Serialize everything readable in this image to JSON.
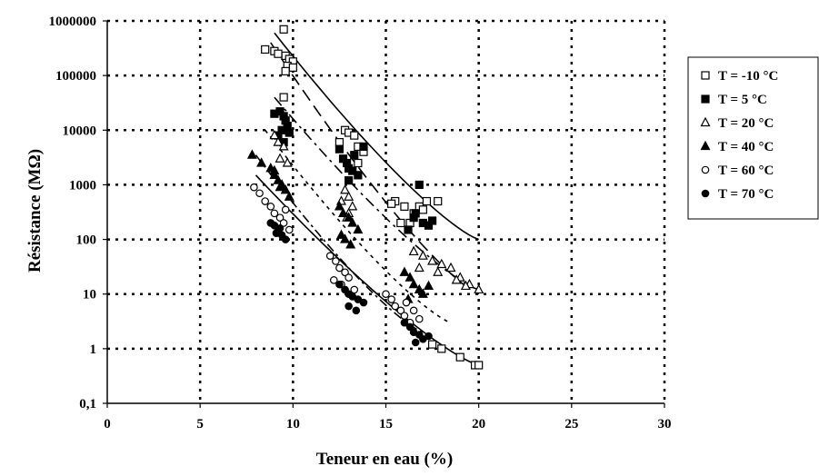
{
  "chart_data": {
    "type": "scatter",
    "title": "",
    "xlabel": "Teneur en eau (%)",
    "ylabel": "Résistance (MΩ)",
    "xlim": [
      0,
      30
    ],
    "ylim": [
      0.1,
      1000000
    ],
    "y_scale": "log",
    "x_ticks": [
      0,
      5,
      10,
      15,
      20,
      25,
      30
    ],
    "x_tick_labels": [
      "0",
      "5",
      "10",
      "15",
      "20",
      "25",
      "30"
    ],
    "y_ticks": [
      0.1,
      1,
      10,
      100,
      1000,
      10000,
      100000,
      1000000
    ],
    "y_tick_labels": [
      "0,1",
      "1",
      "10",
      "100",
      "1000",
      "10000",
      "100000",
      "1000000"
    ],
    "grid": "dotted",
    "legend_position": "right",
    "series": [
      {
        "name": "T = -10 °C",
        "marker": "square-open",
        "points": [
          [
            9.5,
            700000
          ],
          [
            8.5,
            300000
          ],
          [
            9.0,
            280000
          ],
          [
            9.2,
            250000
          ],
          [
            9.6,
            230000
          ],
          [
            9.8,
            200000
          ],
          [
            10.0,
            180000
          ],
          [
            9.7,
            150000
          ],
          [
            10.0,
            140000
          ],
          [
            9.6,
            120000
          ],
          [
            9.5,
            40000
          ],
          [
            12.8,
            10000
          ],
          [
            13.0,
            9000
          ],
          [
            13.3,
            8000
          ],
          [
            12.5,
            6000
          ],
          [
            13.5,
            5000
          ],
          [
            13.8,
            4000
          ],
          [
            13.5,
            2500
          ],
          [
            15.5,
            500
          ],
          [
            15.3,
            450
          ],
          [
            16.0,
            400
          ],
          [
            16.8,
            400
          ],
          [
            17.2,
            500
          ],
          [
            17.8,
            500
          ],
          [
            17.0,
            350
          ],
          [
            16.5,
            300
          ],
          [
            15.8,
            200
          ],
          [
            16.3,
            200
          ],
          [
            17.5,
            1.2
          ],
          [
            18.0,
            1.0
          ],
          [
            19.0,
            0.7
          ],
          [
            19.8,
            0.5
          ],
          [
            20.0,
            0.5
          ]
        ]
      },
      {
        "name": "T = 5 °C",
        "marker": "square-filled",
        "points": [
          [
            9.0,
            20000
          ],
          [
            9.3,
            22000
          ],
          [
            9.5,
            18000
          ],
          [
            9.6,
            15000
          ],
          [
            9.7,
            12000
          ],
          [
            9.4,
            10000
          ],
          [
            9.8,
            9000
          ],
          [
            9.2,
            8000
          ],
          [
            9.5,
            6000
          ],
          [
            12.5,
            4500
          ],
          [
            12.7,
            3000
          ],
          [
            12.9,
            2500
          ],
          [
            13.0,
            2000
          ],
          [
            13.2,
            1800
          ],
          [
            13.5,
            1500
          ],
          [
            13.0,
            1200
          ],
          [
            13.8,
            5000
          ],
          [
            13.3,
            3500
          ],
          [
            16.8,
            1000
          ],
          [
            16.5,
            250
          ],
          [
            17.0,
            200
          ],
          [
            17.3,
            180
          ],
          [
            16.2,
            150
          ],
          [
            16.6,
            300
          ],
          [
            17.5,
            220
          ]
        ]
      },
      {
        "name": "T = 20 °C",
        "marker": "triangle-open",
        "points": [
          [
            9.0,
            8000
          ],
          [
            9.2,
            6000
          ],
          [
            9.5,
            5000
          ],
          [
            9.3,
            3000
          ],
          [
            9.7,
            2500
          ],
          [
            12.8,
            800
          ],
          [
            13.0,
            600
          ],
          [
            12.6,
            500
          ],
          [
            13.2,
            400
          ],
          [
            13.0,
            300
          ],
          [
            12.9,
            250
          ],
          [
            16.5,
            60
          ],
          [
            17.0,
            50
          ],
          [
            17.5,
            40
          ],
          [
            18.0,
            35
          ],
          [
            18.5,
            30
          ],
          [
            19.0,
            20
          ],
          [
            19.5,
            15
          ],
          [
            20.0,
            12
          ],
          [
            16.8,
            30
          ],
          [
            17.8,
            25
          ],
          [
            18.8,
            18
          ],
          [
            19.3,
            14
          ]
        ]
      },
      {
        "name": "T = 40 °C",
        "marker": "triangle-filled",
        "points": [
          [
            7.8,
            3500
          ],
          [
            8.3,
            2500
          ],
          [
            8.8,
            2000
          ],
          [
            9.0,
            1500
          ],
          [
            9.2,
            1200
          ],
          [
            9.4,
            1000
          ],
          [
            9.6,
            800
          ],
          [
            9.8,
            600
          ],
          [
            9.0,
            1800
          ],
          [
            9.3,
            900
          ],
          [
            12.5,
            400
          ],
          [
            12.7,
            300
          ],
          [
            13.0,
            250
          ],
          [
            13.2,
            200
          ],
          [
            13.5,
            150
          ],
          [
            12.8,
            100
          ],
          [
            13.1,
            80
          ],
          [
            12.6,
            120
          ],
          [
            16.0,
            25
          ],
          [
            16.3,
            20
          ],
          [
            16.5,
            15
          ],
          [
            16.8,
            12
          ],
          [
            17.0,
            10
          ],
          [
            16.2,
            8
          ],
          [
            17.3,
            14
          ]
        ]
      },
      {
        "name": "T = 60 °C",
        "marker": "circle-open",
        "points": [
          [
            7.9,
            900
          ],
          [
            8.2,
            700
          ],
          [
            8.5,
            500
          ],
          [
            8.8,
            400
          ],
          [
            9.0,
            300
          ],
          [
            9.3,
            250
          ],
          [
            9.5,
            200
          ],
          [
            9.8,
            150
          ],
          [
            9.6,
            350
          ],
          [
            12.0,
            50
          ],
          [
            12.3,
            40
          ],
          [
            12.5,
            30
          ],
          [
            12.8,
            25
          ],
          [
            13.0,
            20
          ],
          [
            12.6,
            15
          ],
          [
            13.3,
            12
          ],
          [
            12.2,
            18
          ],
          [
            15.0,
            10
          ],
          [
            15.3,
            8
          ],
          [
            15.5,
            6
          ],
          [
            15.8,
            5
          ],
          [
            16.0,
            4
          ],
          [
            16.3,
            3
          ],
          [
            16.5,
            5
          ],
          [
            16.8,
            3.5
          ],
          [
            16.1,
            7
          ]
        ]
      },
      {
        "name": "T = 70 °C",
        "marker": "circle-filled",
        "points": [
          [
            8.8,
            200
          ],
          [
            9.0,
            180
          ],
          [
            9.2,
            150
          ],
          [
            9.4,
            120
          ],
          [
            9.6,
            100
          ],
          [
            9.3,
            160
          ],
          [
            9.1,
            130
          ],
          [
            12.5,
            15
          ],
          [
            12.8,
            12
          ],
          [
            13.0,
            10
          ],
          [
            13.2,
            9
          ],
          [
            13.5,
            8
          ],
          [
            13.8,
            7
          ],
          [
            13.0,
            6
          ],
          [
            13.4,
            5
          ],
          [
            16.0,
            3
          ],
          [
            16.3,
            2.5
          ],
          [
            16.5,
            2
          ],
          [
            16.8,
            1.8
          ],
          [
            17.0,
            1.5
          ],
          [
            17.3,
            1.7
          ],
          [
            16.6,
            1.3
          ]
        ]
      }
    ],
    "fit_lines": [
      {
        "series": "T = -10 °C",
        "style": "solid",
        "x": [
          9.0,
          20.0
        ],
        "y": [
          600000,
          100
        ]
      },
      {
        "series": "T = 5 °C",
        "style": "dashed",
        "x": [
          8.8,
          20.0
        ],
        "y": [
          400000,
          10
        ]
      },
      {
        "series": "T = 20 °C",
        "style": "dashdot",
        "x": [
          9.0,
          20.0
        ],
        "y": [
          40000,
          12
        ]
      },
      {
        "series": "T = 40 °C",
        "style": "dotted",
        "x": [
          8.5,
          18.5
        ],
        "y": [
          10000,
          3
        ]
      },
      {
        "series": "T = 60 °C",
        "style": "dashdot2",
        "x": [
          8.0,
          17.0
        ],
        "y": [
          3500,
          2
        ]
      },
      {
        "series": "T = 70 °C",
        "style": "solid",
        "x": [
          8.0,
          20.0
        ],
        "y": [
          1500,
          0.5
        ]
      }
    ]
  }
}
